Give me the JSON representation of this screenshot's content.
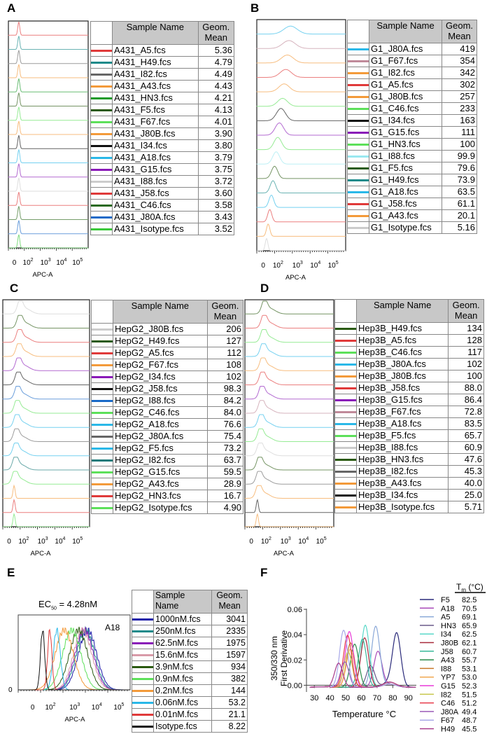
{
  "panels": {
    "A": {
      "label": "A",
      "header": {
        "sample": "Sample Name",
        "geom": "Geom.\nMean"
      },
      "xlabel": "APC-A",
      "xticks": [
        "0",
        "10^2",
        "10^3",
        "10^4",
        "10^5"
      ],
      "rows": [
        {
          "name": "A431_A5.fcs",
          "value": "5.36",
          "color": "#e03a3a"
        },
        {
          "name": "A431_H49.fcs",
          "value": "4.79",
          "color": "#1a8a8a"
        },
        {
          "name": "A431_I82.fcs",
          "value": "4.49",
          "color": "#666666"
        },
        {
          "name": "A431_A43.fcs",
          "value": "4.43",
          "color": "#f39a3a"
        },
        {
          "name": "A431_HN3.fcs",
          "value": "4.21",
          "color": "#1a9a2a"
        },
        {
          "name": "A431_F5.fcs",
          "value": "4.13",
          "color": "#2a5a10"
        },
        {
          "name": "A431_F67.fcs",
          "value": "4.01",
          "color": "#5de05a"
        },
        {
          "name": "A431_J80B.fcs",
          "value": "3.90",
          "color": "#f39a3a"
        },
        {
          "name": "A431_I34.fcs",
          "value": "3.80",
          "color": "#111111"
        },
        {
          "name": "A431_A18.fcs",
          "value": "3.79",
          "color": "#2ab8e8"
        },
        {
          "name": "A431_G15.fcs",
          "value": "3.75",
          "color": "#8a1ab8"
        },
        {
          "name": "A431_I88.fcs",
          "value": "3.72",
          "color": "#cccccc"
        },
        {
          "name": "A431_J58.fcs",
          "value": "3.60",
          "color": "#e03a3a"
        },
        {
          "name": "A431_C46.fcs",
          "value": "3.58",
          "color": "#2a6a1a"
        },
        {
          "name": "A431_J80A.fcs",
          "value": "3.43",
          "color": "#1a6ac8"
        },
        {
          "name": "A431_Isotype.fcs",
          "value": "3.52",
          "color": "#3ac83a"
        }
      ]
    },
    "B": {
      "label": "B",
      "header": {
        "sample": "Sample Name",
        "geom": "Geom.\nMean"
      },
      "xlabel": "APC-A",
      "xticks": [
        "0",
        "10^2",
        "10^3",
        "10^4",
        "10^5"
      ],
      "rows": [
        {
          "name": "G1_J80A.fcs",
          "value": "419",
          "color": "#2ab8e8"
        },
        {
          "name": "G1_F67.fcs",
          "value": "354",
          "color": "#c08a9a"
        },
        {
          "name": "G1_I82.fcs",
          "value": "342",
          "color": "#f39a3a"
        },
        {
          "name": "G1_A5.fcs",
          "value": "302",
          "color": "#e03a3a"
        },
        {
          "name": "G1_J80B.fcs",
          "value": "257",
          "color": "#f39a3a"
        },
        {
          "name": "G1_C46.fcs",
          "value": "233",
          "color": "#5de05a"
        },
        {
          "name": "G1_I34.fcs",
          "value": "163",
          "color": "#111111"
        },
        {
          "name": "G1_G15.fcs",
          "value": "111",
          "color": "#8a1ab8"
        },
        {
          "name": "G1_HN3.fcs",
          "value": "100",
          "color": "#5de05a"
        },
        {
          "name": "G1_I88.fcs",
          "value": "99.9",
          "color": "#9ae8f0"
        },
        {
          "name": "G1_F5.fcs",
          "value": "79.6",
          "color": "#2a5a10"
        },
        {
          "name": "G1_H49.fcs",
          "value": "73.9",
          "color": "#1a8a8a"
        },
        {
          "name": "G1_A18.fcs",
          "value": "63.5",
          "color": "#2ab8e8"
        },
        {
          "name": "G1_J58.fcs",
          "value": "61.1",
          "color": "#e03a3a"
        },
        {
          "name": "G1_A43.fcs",
          "value": "20.1",
          "color": "#f39a3a"
        },
        {
          "name": "G1_Isotype.fcs",
          "value": "5.16",
          "color": "#cccccc"
        }
      ]
    },
    "C": {
      "label": "C",
      "header": {
        "sample": "Sample Name",
        "geom": "Geom.\nMean"
      },
      "xlabel": "APC-A",
      "xticks": [
        "0",
        "10^2",
        "10^3",
        "10^4",
        "10^5"
      ],
      "rows": [
        {
          "name": "HepG2_J80B.fcs",
          "value": "206",
          "color": "#cccccc"
        },
        {
          "name": "HepG2_H49.fcs",
          "value": "127",
          "color": "#2a5a10"
        },
        {
          "name": "HepG2_A5.fcs",
          "value": "112",
          "color": "#e03a3a"
        },
        {
          "name": "HepG2_F67.fcs",
          "value": "108",
          "color": "#f39a3a"
        },
        {
          "name": "HepG2_I34.fcs",
          "value": "102",
          "color": "#8a1ab8"
        },
        {
          "name": "HepG2_J58.fcs",
          "value": "98.3",
          "color": "#111111"
        },
        {
          "name": "HepG2_I88.fcs",
          "value": "84.2",
          "color": "#1a6ac8"
        },
        {
          "name": "HepG2_C46.fcs",
          "value": "84.0",
          "color": "#5de05a"
        },
        {
          "name": "HepG2_A18.fcs",
          "value": "76.6",
          "color": "#2ab8e8"
        },
        {
          "name": "HepG2_J80A.fcs",
          "value": "75.4",
          "color": "#666666"
        },
        {
          "name": "HepG2_F5.fcs",
          "value": "73.2",
          "color": "#2ab8e8"
        },
        {
          "name": "HepG2_I82.fcs",
          "value": "63.7",
          "color": "#1a7a7a"
        },
        {
          "name": "HepG2_G15.fcs",
          "value": "59.5",
          "color": "#5de05a"
        },
        {
          "name": "HepG2_A43.fcs",
          "value": "28.9",
          "color": "#f39a3a"
        },
        {
          "name": "HepG2_HN3.fcs",
          "value": "16.7",
          "color": "#e03a3a"
        },
        {
          "name": "HepG2_Isotype.fcs",
          "value": "4.90",
          "color": "#5de05a"
        }
      ]
    },
    "D": {
      "label": "D",
      "header": {
        "sample": "Sample Name",
        "geom": "Geom.\nMean"
      },
      "xlabel": "APC-A",
      "xticks": [
        "0",
        "10^2",
        "10^3",
        "10^4",
        "10^5"
      ],
      "rows": [
        {
          "name": "Hep3B_H49.fcs",
          "value": "134",
          "color": "#2a5a10"
        },
        {
          "name": "Hep3B_A5.fcs",
          "value": "128",
          "color": "#e03a3a"
        },
        {
          "name": "Hep3B_C46.fcs",
          "value": "117",
          "color": "#5de05a"
        },
        {
          "name": "Hep3B_J80A.fcs",
          "value": "102",
          "color": "#2ab8e8"
        },
        {
          "name": "Hep3B_J80B.fcs",
          "value": "100",
          "color": "#f39a3a"
        },
        {
          "name": "Hep3B_J58.fcs",
          "value": "88.0",
          "color": "#e03a3a"
        },
        {
          "name": "Hep3B_G15.fcs",
          "value": "86.4",
          "color": "#8a1ab8"
        },
        {
          "name": "Hep3B_F67.fcs",
          "value": "72.8",
          "color": "#c08a9a"
        },
        {
          "name": "Hep3B_A18.fcs",
          "value": "83.5",
          "color": "#2ab8e8"
        },
        {
          "name": "Hep3B_F5.fcs",
          "value": "65.7",
          "color": "#5de05a"
        },
        {
          "name": "Hep3B_I88.fcs",
          "value": "60.9",
          "color": "#cccccc"
        },
        {
          "name": "Hep3B_HN3.fcs",
          "value": "47.6",
          "color": "#2a5a10"
        },
        {
          "name": "Hep3B_I82.fcs",
          "value": "45.3",
          "color": "#666666"
        },
        {
          "name": "Hep3B_A43.fcs",
          "value": "40.0",
          "color": "#f39a3a"
        },
        {
          "name": "Hep3B_I34.fcs",
          "value": "25.0",
          "color": "#111111"
        },
        {
          "name": "Hep3B_Isotype.fcs",
          "value": "5.71",
          "color": "#f39a3a"
        }
      ]
    },
    "E": {
      "label": "E",
      "title": "EC50 = 4.28nM",
      "title_main": "EC",
      "title_sub": "50",
      "title_rest": " = 4.28nM",
      "annotation": "A18",
      "ytick": "0",
      "header": {
        "sample": "Sample\nName",
        "geom": "Geom.\nMean"
      },
      "xlabel": "APC-A",
      "xticks": [
        "0",
        "10^2",
        "10^3",
        "10^4",
        "10^5"
      ],
      "rows": [
        {
          "name": "1000nM.fcs",
          "value": "3041",
          "color": "#1a1aa8"
        },
        {
          "name": "250nM.fcs",
          "value": "2335",
          "color": "#1a8a8a"
        },
        {
          "name": "62.5nM.fcs",
          "value": "1975",
          "color": "#8a1ab8"
        },
        {
          "name": "15.6nM.fcs",
          "value": "1597",
          "color": "#d89aa8"
        },
        {
          "name": "3.9nM.fcs",
          "value": "934",
          "color": "#2a5a10"
        },
        {
          "name": "0.9nM.fcs",
          "value": "382",
          "color": "#5de05a"
        },
        {
          "name": "0.2nM.fcs",
          "value": "144",
          "color": "#f39a3a"
        },
        {
          "name": "0.06nM.fcs",
          "value": "53.2",
          "color": "#2ab8e8"
        },
        {
          "name": "0.01nM.fcs",
          "value": "21.1",
          "color": "#e03a3a"
        },
        {
          "name": "Isotype.fcs",
          "value": "8.22",
          "color": "#111111"
        }
      ]
    },
    "F": {
      "label": "F",
      "legend_title_main": "T",
      "legend_title_sub": "m",
      "legend_title_rest": " (°C)",
      "ylabel_line1": "350/330 nm",
      "ylabel_line2": "First Derivative",
      "xlabel": "Temperature °C",
      "yticks": [
        "0.00",
        "0.02",
        "0.04",
        "0.06"
      ],
      "xticks": [
        "30",
        "40",
        "50",
        "60",
        "70",
        "80",
        "90"
      ]
    }
  },
  "chart_data": [
    {
      "type": "table",
      "title": "A431 flow cytometry (APC-A)",
      "xlabel": "APC-A",
      "columns": [
        "Sample Name",
        "Geom. Mean"
      ],
      "rows": [
        [
          "A431_A5.fcs",
          5.36
        ],
        [
          "A431_H49.fcs",
          4.79
        ],
        [
          "A431_I82.fcs",
          4.49
        ],
        [
          "A431_A43.fcs",
          4.43
        ],
        [
          "A431_HN3.fcs",
          4.21
        ],
        [
          "A431_F5.fcs",
          4.13
        ],
        [
          "A431_F67.fcs",
          4.01
        ],
        [
          "A431_J80B.fcs",
          3.9
        ],
        [
          "A431_I34.fcs",
          3.8
        ],
        [
          "A431_A18.fcs",
          3.79
        ],
        [
          "A431_G15.fcs",
          3.75
        ],
        [
          "A431_I88.fcs",
          3.72
        ],
        [
          "A431_J58.fcs",
          3.6
        ],
        [
          "A431_C46.fcs",
          3.58
        ],
        [
          "A431_J80A.fcs",
          3.43
        ],
        [
          "A431_Isotype.fcs",
          3.52
        ]
      ]
    },
    {
      "type": "table",
      "title": "G1 flow cytometry (APC-A)",
      "columns": [
        "Sample Name",
        "Geom. Mean"
      ],
      "rows": [
        [
          "G1_J80A.fcs",
          419
        ],
        [
          "G1_F67.fcs",
          354
        ],
        [
          "G1_I82.fcs",
          342
        ],
        [
          "G1_A5.fcs",
          302
        ],
        [
          "G1_J80B.fcs",
          257
        ],
        [
          "G1_C46.fcs",
          233
        ],
        [
          "G1_I34.fcs",
          163
        ],
        [
          "G1_G15.fcs",
          111
        ],
        [
          "G1_HN3.fcs",
          100
        ],
        [
          "G1_I88.fcs",
          99.9
        ],
        [
          "G1_F5.fcs",
          79.6
        ],
        [
          "G1_H49.fcs",
          73.9
        ],
        [
          "G1_A18.fcs",
          63.5
        ],
        [
          "G1_J58.fcs",
          61.1
        ],
        [
          "G1_A43.fcs",
          20.1
        ],
        [
          "G1_Isotype.fcs",
          5.16
        ]
      ]
    },
    {
      "type": "table",
      "title": "HepG2 flow cytometry (APC-A)",
      "columns": [
        "Sample Name",
        "Geom. Mean"
      ],
      "rows": [
        [
          "HepG2_J80B.fcs",
          206
        ],
        [
          "HepG2_H49.fcs",
          127
        ],
        [
          "HepG2_A5.fcs",
          112
        ],
        [
          "HepG2_F67.fcs",
          108
        ],
        [
          "HepG2_I34.fcs",
          102
        ],
        [
          "HepG2_J58.fcs",
          98.3
        ],
        [
          "HepG2_I88.fcs",
          84.2
        ],
        [
          "HepG2_C46.fcs",
          84.0
        ],
        [
          "HepG2_A18.fcs",
          76.6
        ],
        [
          "HepG2_J80A.fcs",
          75.4
        ],
        [
          "HepG2_F5.fcs",
          73.2
        ],
        [
          "HepG2_I82.fcs",
          63.7
        ],
        [
          "HepG2_G15.fcs",
          59.5
        ],
        [
          "HepG2_A43.fcs",
          28.9
        ],
        [
          "HepG2_HN3.fcs",
          16.7
        ],
        [
          "HepG2_Isotype.fcs",
          4.9
        ]
      ]
    },
    {
      "type": "table",
      "title": "Hep3B flow cytometry (APC-A)",
      "columns": [
        "Sample Name",
        "Geom. Mean"
      ],
      "rows": [
        [
          "Hep3B_H49.fcs",
          134
        ],
        [
          "Hep3B_A5.fcs",
          128
        ],
        [
          "Hep3B_C46.fcs",
          117
        ],
        [
          "Hep3B_J80A.fcs",
          102
        ],
        [
          "Hep3B_J80B.fcs",
          100
        ],
        [
          "Hep3B_J58.fcs",
          88.0
        ],
        [
          "Hep3B_G15.fcs",
          86.4
        ],
        [
          "Hep3B_F67.fcs",
          72.8
        ],
        [
          "Hep3B_A18.fcs",
          83.5
        ],
        [
          "Hep3B_F5.fcs",
          65.7
        ],
        [
          "Hep3B_I88.fcs",
          60.9
        ],
        [
          "Hep3B_HN3.fcs",
          47.6
        ],
        [
          "Hep3B_I82.fcs",
          45.3
        ],
        [
          "Hep3B_A43.fcs",
          40.0
        ],
        [
          "Hep3B_I34.fcs",
          25.0
        ],
        [
          "Hep3B_Isotype.fcs",
          5.71
        ]
      ]
    },
    {
      "type": "line",
      "title": "EC50 = 4.28nM",
      "annotation": "A18",
      "xlabel": "APC-A",
      "xscale": "log",
      "columns": [
        "Sample Name",
        "Geom. Mean"
      ],
      "series": [
        {
          "name": "1000nM.fcs",
          "geom_mean": 3041
        },
        {
          "name": "250nM.fcs",
          "geom_mean": 2335
        },
        {
          "name": "62.5nM.fcs",
          "geom_mean": 1975
        },
        {
          "name": "15.6nM.fcs",
          "geom_mean": 1597
        },
        {
          "name": "3.9nM.fcs",
          "geom_mean": 934
        },
        {
          "name": "0.9nM.fcs",
          "geom_mean": 382
        },
        {
          "name": "0.2nM.fcs",
          "geom_mean": 144
        },
        {
          "name": "0.06nM.fcs",
          "geom_mean": 53.2
        },
        {
          "name": "0.01nM.fcs",
          "geom_mean": 21.1
        },
        {
          "name": "Isotype.fcs",
          "geom_mean": 8.22
        }
      ]
    },
    {
      "type": "line",
      "title": "",
      "xlabel": "Temperature °C",
      "ylabel": "350/330 nm First Derivative",
      "xlim": [
        25,
        95
      ],
      "ylim": [
        -0.002,
        0.06
      ],
      "legend": "right",
      "legend_title": "Tm (°C)",
      "series": [
        {
          "name": "F5",
          "tm": 82.5,
          "peak": 0.041,
          "color": "#2a2a7a"
        },
        {
          "name": "A18",
          "tm": 70.5,
          "peak": 0.028,
          "color": "#a84ab8"
        },
        {
          "name": "A5",
          "tm": 69.1,
          "peak": 0.048,
          "color": "#8aa8d8"
        },
        {
          "name": "HN3",
          "tm": 65.9,
          "peak": 0.017,
          "color": "#6a5a8a"
        },
        {
          "name": "I34",
          "tm": 62.5,
          "peak": 0.049,
          "color": "#5ad8c8"
        },
        {
          "name": "J80B",
          "tm": 62.1,
          "peak": 0.039,
          "color": "#a82a3a"
        },
        {
          "name": "J58",
          "tm": 60.7,
          "peak": 0.038,
          "color": "#3ab89a"
        },
        {
          "name": "A43",
          "tm": 55.7,
          "peak": 0.034,
          "color": "#2a8a4a"
        },
        {
          "name": "I88",
          "tm": 53.1,
          "peak": 0.035,
          "color": "#c8782a"
        },
        {
          "name": "YP7",
          "tm": 53.0,
          "peak": 0.03,
          "color": "#f0a850"
        },
        {
          "name": "G15",
          "tm": 52.3,
          "peak": 0.044,
          "color": "#e83ad8"
        },
        {
          "name": "I82",
          "tm": 51.5,
          "peak": 0.028,
          "color": "#c8c850"
        },
        {
          "name": "C46",
          "tm": 51.2,
          "peak": 0.041,
          "color": "#e83a4a"
        },
        {
          "name": "J80A",
          "tm": 49.4,
          "peak": 0.02,
          "color": "#9a5ab8"
        },
        {
          "name": "F67",
          "tm": 48.7,
          "peak": 0.045,
          "color": "#a8a8e8"
        },
        {
          "name": "H49",
          "tm": 45.5,
          "peak": 0.019,
          "color": "#a83a8a"
        }
      ]
    }
  ]
}
